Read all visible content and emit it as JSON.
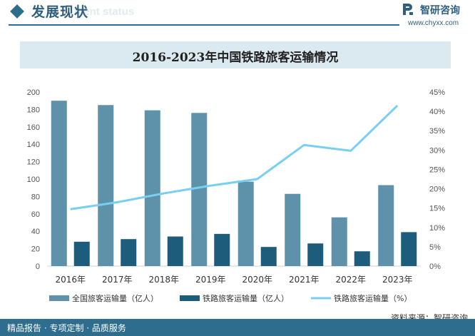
{
  "header": {
    "section_title": "发展现状",
    "section_subtitle": "ment status",
    "brand_name": "智研咨询",
    "brand_url": "www.chyxx.com"
  },
  "footer": {
    "tagline": "精品报告 · 专项定制 · 品质服务",
    "source": "资料来源：智研咨询"
  },
  "colors": {
    "accent": "#2f6d8f",
    "bar_total": "#5e92aa",
    "bar_rail": "#1d5c7a",
    "line_share": "#79cff2",
    "banner": "#dbe9f1"
  },
  "chart_data": {
    "type": "bar",
    "title": "2016-2023年中国铁路旅客运输情况",
    "categories": [
      "2016年",
      "2017年",
      "2018年",
      "2019年",
      "2020年",
      "2021年",
      "2022年",
      "2023年"
    ],
    "series": [
      {
        "name": "全国旅客运输量（亿人）",
        "type": "bar",
        "axis": "left",
        "values": [
          190,
          185,
          179,
          176,
          97,
          83,
          56,
          93
        ]
      },
      {
        "name": "铁路旅客运输量（亿人）",
        "type": "bar",
        "axis": "left",
        "values": [
          28,
          31,
          34,
          37,
          22,
          26,
          17,
          39
        ]
      },
      {
        "name": "铁路旅客运输量（%）",
        "type": "line",
        "axis": "right",
        "values": [
          14.7,
          16.5,
          18.8,
          20.8,
          22.5,
          31.3,
          29.8,
          41.5
        ]
      }
    ],
    "y_left": {
      "min": 0,
      "max": 200,
      "ticks": [
        "0",
        "20",
        "40",
        "60",
        "80",
        "100",
        "120",
        "140",
        "160",
        "180",
        "200"
      ]
    },
    "y_right": {
      "min": 0,
      "max": 45,
      "ticks": [
        "0%",
        "5%",
        "10%",
        "15%",
        "20%",
        "25%",
        "30%",
        "35%",
        "40%",
        "45%"
      ]
    },
    "legend_position": "bottom",
    "grid": false
  }
}
